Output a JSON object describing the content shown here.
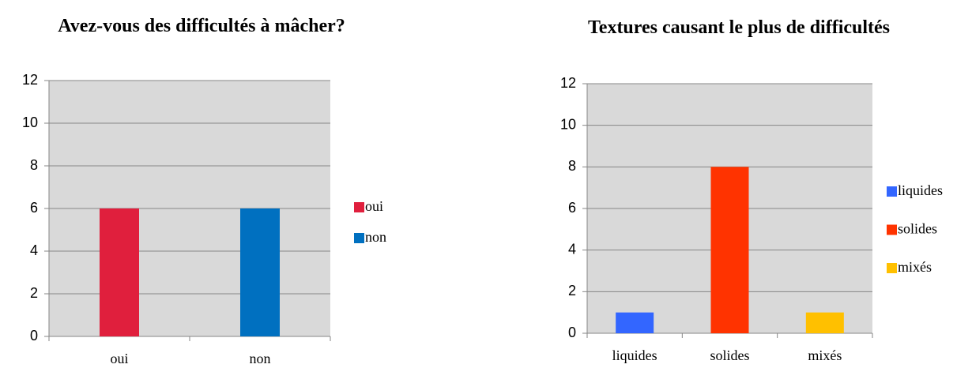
{
  "chart_data": [
    {
      "type": "bar",
      "title": "Avez-vous des difficultés à mâcher?",
      "categories": [
        "oui",
        "non"
      ],
      "values": [
        6,
        6
      ],
      "colors": [
        "#e01f3d",
        "#0070c0"
      ],
      "ylim": [
        0,
        12
      ],
      "yticks": [
        0,
        2,
        4,
        6,
        8,
        10,
        12
      ],
      "grid": true,
      "legend": "right"
    },
    {
      "type": "bar",
      "title": "Textures causant le plus de difficultés",
      "categories": [
        "liquides",
        "solides",
        "mixés"
      ],
      "values": [
        1,
        8,
        1
      ],
      "colors": [
        "#3366ff",
        "#ff3300",
        "#ffc000"
      ],
      "ylim": [
        0,
        12
      ],
      "yticks": [
        0,
        2,
        4,
        6,
        8,
        10,
        12
      ],
      "grid": true,
      "legend": "right"
    }
  ]
}
